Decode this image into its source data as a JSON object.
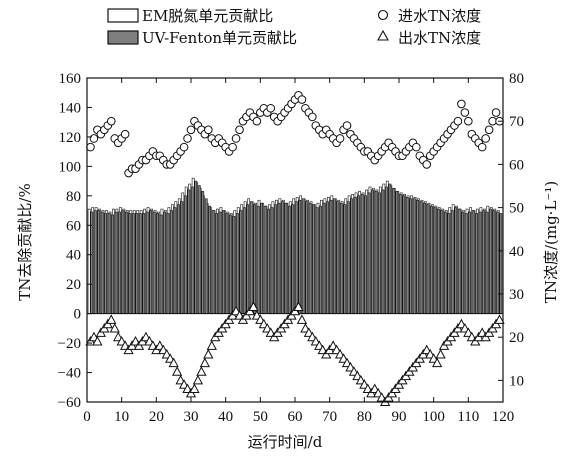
{
  "chart_data": {
    "type": "bar",
    "x_name": "运行时间/d",
    "xlabel": "运行时间/d",
    "ylabel_left": "TN去除贡献比/%",
    "ylabel_right": "TN浓度/(mg·L⁻¹)",
    "xlim": [
      0,
      120
    ],
    "ylim_left": [
      -60,
      160
    ],
    "ylim_right": [
      5,
      80
    ],
    "x_ticks": [
      0,
      10,
      20,
      30,
      40,
      50,
      60,
      70,
      80,
      90,
      100,
      110,
      120
    ],
    "x_tick_labels": [
      "0",
      "10",
      "20",
      "30",
      "40",
      "50",
      "60",
      "70",
      "80",
      "90",
      "100",
      "110",
      "120"
    ],
    "y_left_ticks": [
      -60,
      -40,
      -20,
      0,
      20,
      40,
      60,
      80,
      100,
      120,
      140,
      160
    ],
    "y_left_tick_labels": [
      "−60",
      "−40",
      "−20",
      "0",
      "20",
      "40",
      "60",
      "80",
      "100",
      "120",
      "140",
      "160"
    ],
    "y_right_ticks": [
      10,
      20,
      30,
      40,
      50,
      60,
      70,
      80
    ],
    "y_right_tick_labels": [
      "10",
      "20",
      "30",
      "40",
      "50",
      "60",
      "70",
      "80"
    ],
    "legend": [
      {
        "label": "EM脱氮单元贡献比",
        "marker": "open-bar"
      },
      {
        "label": "UV-Fenton单元贡献比",
        "marker": "gray-bar"
      },
      {
        "label": "进水TN浓度",
        "marker": "circle"
      },
      {
        "label": "出水TN浓度",
        "marker": "triangle"
      }
    ],
    "series": [
      {
        "name": "EM脱氮单元贡献比",
        "axis": "left",
        "style": "open-bar",
        "x": [
          1,
          2,
          3,
          4,
          5,
          6,
          7,
          8,
          9,
          10,
          11,
          12,
          13,
          14,
          15,
          16,
          17,
          18,
          19,
          20,
          21,
          22,
          23,
          24,
          25,
          26,
          27,
          28,
          29,
          30,
          31,
          32,
          33,
          34,
          35,
          36,
          37,
          38,
          39,
          40,
          41,
          42,
          43,
          44,
          45,
          46,
          47,
          48,
          49,
          50,
          51,
          52,
          53,
          54,
          55,
          56,
          57,
          58,
          59,
          60,
          61,
          62,
          63,
          64,
          65,
          66,
          67,
          68,
          69,
          70,
          71,
          72,
          73,
          74,
          75,
          76,
          77,
          78,
          79,
          80,
          81,
          82,
          83,
          84,
          85,
          86,
          87,
          88,
          89,
          90,
          91,
          92,
          93,
          94,
          95,
          96,
          97,
          98,
          99,
          100,
          101,
          102,
          103,
          104,
          105,
          106,
          107,
          108,
          109,
          110,
          111,
          112,
          113,
          114,
          115,
          116,
          117,
          118,
          119
        ],
        "values": [
          71,
          72,
          72,
          71,
          70,
          70,
          69,
          71,
          71,
          72,
          71,
          70,
          70,
          70,
          70,
          70,
          71,
          72,
          71,
          70,
          69,
          71,
          70,
          72,
          74,
          76,
          78,
          82,
          86,
          88,
          92,
          89,
          85,
          80,
          75,
          72,
          70,
          71,
          72,
          70,
          69,
          68,
          70,
          72,
          74,
          76,
          78,
          76,
          75,
          77,
          75,
          73,
          74,
          76,
          77,
          78,
          77,
          75,
          76,
          78,
          79,
          80,
          78,
          77,
          76,
          74,
          75,
          77,
          78,
          79,
          80,
          78,
          77,
          76,
          78,
          80,
          81,
          82,
          83,
          82,
          84,
          86,
          85,
          84,
          86,
          88,
          90,
          87,
          85,
          83,
          82,
          81,
          80,
          80,
          79,
          78,
          77,
          76,
          75,
          74,
          73,
          72,
          71,
          70,
          72,
          74,
          73,
          71,
          70,
          71,
          72,
          70,
          71,
          72,
          71,
          73,
          72,
          71,
          70
        ]
      },
      {
        "name": "UV-Fenton单元贡献比",
        "axis": "left",
        "style": "gray-bar",
        "x": [
          1,
          2,
          3,
          4,
          5,
          6,
          7,
          8,
          9,
          10,
          11,
          12,
          13,
          14,
          15,
          16,
          17,
          18,
          19,
          20,
          21,
          22,
          23,
          24,
          25,
          26,
          27,
          28,
          29,
          30,
          31,
          32,
          33,
          34,
          35,
          36,
          37,
          38,
          39,
          40,
          41,
          42,
          43,
          44,
          45,
          46,
          47,
          48,
          49,
          50,
          51,
          52,
          53,
          54,
          55,
          56,
          57,
          58,
          59,
          60,
          61,
          62,
          63,
          64,
          65,
          66,
          67,
          68,
          69,
          70,
          71,
          72,
          73,
          74,
          75,
          76,
          77,
          78,
          79,
          80,
          81,
          82,
          83,
          84,
          85,
          86,
          87,
          88,
          89,
          90,
          91,
          92,
          93,
          94,
          95,
          96,
          97,
          98,
          99,
          100,
          101,
          102,
          103,
          104,
          105,
          106,
          107,
          108,
          109,
          110,
          111,
          112,
          113,
          114,
          115,
          116,
          117,
          118,
          119
        ],
        "values": [
          69,
          70,
          70,
          69,
          68,
          68,
          67,
          69,
          69,
          70,
          69,
          68,
          68,
          68,
          68,
          68,
          69,
          70,
          69,
          68,
          67,
          69,
          68,
          70,
          72,
          74,
          76,
          80,
          84,
          86,
          90,
          87,
          83,
          78,
          73,
          70,
          68,
          69,
          70,
          68,
          67,
          66,
          68,
          70,
          72,
          74,
          76,
          74,
          73,
          75,
          73,
          71,
          72,
          74,
          75,
          76,
          75,
          73,
          74,
          76,
          77,
          78,
          76,
          75,
          74,
          72,
          73,
          75,
          76,
          77,
          78,
          76,
          75,
          74,
          76,
          78,
          79,
          80,
          81,
          80,
          82,
          84,
          83,
          82,
          84,
          86,
          88,
          85,
          83,
          81,
          80,
          79,
          78,
          78,
          77,
          76,
          75,
          74,
          73,
          72,
          71,
          70,
          69,
          68,
          70,
          72,
          71,
          69,
          68,
          69,
          70,
          68,
          69,
          70,
          69,
          71,
          70,
          69,
          68
        ]
      },
      {
        "name": "进水TN浓度",
        "axis": "right",
        "style": "circle",
        "x": [
          1,
          2,
          3,
          4,
          5,
          6,
          7,
          8,
          9,
          10,
          11,
          12,
          13,
          14,
          15,
          16,
          17,
          18,
          19,
          20,
          21,
          22,
          23,
          24,
          25,
          26,
          27,
          28,
          29,
          30,
          31,
          32,
          33,
          34,
          35,
          36,
          37,
          38,
          39,
          40,
          41,
          42,
          43,
          44,
          45,
          46,
          47,
          48,
          49,
          50,
          51,
          52,
          53,
          54,
          55,
          56,
          57,
          58,
          59,
          60,
          61,
          62,
          63,
          64,
          65,
          66,
          67,
          68,
          69,
          70,
          71,
          72,
          73,
          74,
          75,
          76,
          77,
          78,
          79,
          80,
          81,
          82,
          83,
          84,
          85,
          86,
          87,
          88,
          89,
          90,
          91,
          92,
          93,
          94,
          95,
          96,
          97,
          98,
          99,
          100,
          101,
          102,
          103,
          104,
          105,
          106,
          107,
          108,
          109,
          110,
          111,
          112,
          113,
          114,
          115,
          116,
          117,
          118,
          119
        ],
        "values": [
          64,
          66,
          68,
          67,
          68,
          69,
          70,
          66,
          65,
          66,
          67,
          58,
          59,
          59,
          60,
          61,
          61,
          62,
          63,
          62,
          62,
          61,
          60,
          60,
          61,
          62,
          63,
          64,
          66,
          68,
          70,
          69,
          68,
          67,
          68,
          66,
          65,
          66,
          65,
          64,
          63,
          64,
          66,
          68,
          70,
          71,
          72,
          71,
          70,
          72,
          73,
          72,
          73,
          71,
          70,
          71,
          72,
          73,
          74,
          75,
          76,
          75,
          73,
          72,
          71,
          69,
          68,
          67,
          68,
          67,
          66,
          65,
          66,
          68,
          69,
          67,
          66,
          65,
          64,
          63,
          63,
          62,
          61,
          62,
          63,
          64,
          65,
          64,
          63,
          62,
          62,
          63,
          64,
          65,
          64,
          62,
          61,
          60,
          62,
          63,
          64,
          65,
          66,
          67,
          68,
          69,
          70,
          74,
          72,
          70,
          67,
          66,
          65,
          64,
          66,
          68,
          70,
          72,
          70
        ]
      },
      {
        "name": "出水TN浓度",
        "axis": "right",
        "style": "triangle",
        "x": [
          1,
          2,
          3,
          4,
          5,
          6,
          7,
          8,
          9,
          10,
          11,
          12,
          13,
          14,
          15,
          16,
          17,
          18,
          19,
          20,
          21,
          22,
          23,
          24,
          25,
          26,
          27,
          28,
          29,
          30,
          31,
          32,
          33,
          34,
          35,
          36,
          37,
          38,
          39,
          40,
          41,
          42,
          43,
          44,
          45,
          46,
          47,
          48,
          49,
          50,
          51,
          52,
          53,
          54,
          55,
          56,
          57,
          58,
          59,
          60,
          61,
          62,
          63,
          64,
          65,
          66,
          67,
          68,
          69,
          70,
          71,
          72,
          73,
          74,
          75,
          76,
          77,
          78,
          79,
          80,
          81,
          82,
          83,
          84,
          85,
          86,
          87,
          88,
          89,
          90,
          91,
          92,
          93,
          94,
          95,
          96,
          97,
          98,
          99,
          100,
          101,
          102,
          103,
          104,
          105,
          106,
          107,
          108,
          109,
          110,
          111,
          112,
          113,
          114,
          115,
          116,
          117,
          118,
          119
        ],
        "values": [
          19,
          20,
          19,
          21,
          22,
          23,
          24,
          22,
          20,
          19,
          18,
          17,
          18,
          19,
          18,
          19,
          20,
          19,
          18,
          17,
          18,
          17,
          16,
          15,
          14,
          12,
          10,
          9,
          8,
          7,
          8,
          10,
          12,
          14,
          16,
          18,
          20,
          21,
          22,
          23,
          24,
          25,
          26,
          25,
          24,
          25,
          26,
          27,
          25,
          24,
          23,
          22,
          21,
          20,
          21,
          22,
          23,
          24,
          25,
          26,
          27,
          24,
          22,
          21,
          20,
          19,
          18,
          17,
          16,
          17,
          18,
          17,
          16,
          15,
          14,
          13,
          12,
          11,
          10,
          9,
          8,
          7,
          8,
          7,
          6,
          5,
          6,
          7,
          8,
          9,
          10,
          11,
          12,
          13,
          14,
          15,
          16,
          17,
          16,
          15,
          14,
          16,
          18,
          19,
          20,
          21,
          22,
          23,
          22,
          21,
          20,
          19,
          20,
          21,
          20,
          21,
          22,
          23,
          24
        ]
      }
    ]
  }
}
